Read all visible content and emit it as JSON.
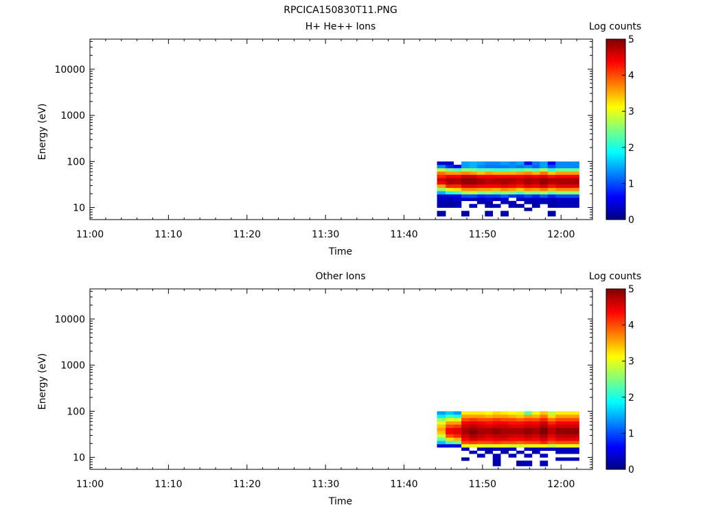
{
  "figure_title": "RPCICA150830T11.PNG",
  "colors": {
    "colormap": [
      "#00007f",
      "#0000ff",
      "#007fff",
      "#00ffff",
      "#7fff7f",
      "#ffff00",
      "#ff7f00",
      "#ff0000",
      "#7f0000"
    ],
    "axes": "#000000",
    "background": "#ffffff"
  },
  "chart_data": [
    {
      "type": "heatmap",
      "title": "H+ He++ Ions",
      "xlabel": "Time",
      "ylabel": "Energy (eV)",
      "x_ticks": [
        "11:00",
        "11:10",
        "11:20",
        "11:30",
        "11:40",
        "11:50",
        "12:00"
      ],
      "x_range_minutes": [
        0,
        64
      ],
      "y_scale": "log",
      "y_ticks": [
        "10",
        "100",
        "1000",
        "10000"
      ],
      "y_range": [
        5.5,
        45000
      ],
      "colorbar_label": "Log counts",
      "colorbar_ticks": [
        "0",
        "1",
        "2",
        "3",
        "4",
        "5"
      ],
      "colorbar_range": [
        0,
        5
      ],
      "energy_bins": [
        6.5,
        8.5,
        10,
        12,
        14,
        16.5,
        19.5,
        23,
        27,
        32,
        37.5,
        44,
        52,
        61,
        72,
        85,
        100
      ],
      "time_columns": [
        {
          "t0": 44.2,
          "t1": 45.3,
          "values": [
            0.2,
            null,
            0.2,
            0.3,
            0.3,
            0.4,
            1.5,
            2.6,
            3.6,
            4.4,
            4.6,
            4.2,
            3.8,
            2.8,
            1.3,
            0.4
          ]
        },
        {
          "t0": 45.3,
          "t1": 46.3,
          "values": [
            null,
            null,
            0.2,
            0.2,
            0.3,
            0.4,
            2.0,
            3.2,
            4.2,
            4.8,
            4.8,
            4.4,
            3.6,
            2.5,
            0.8,
            0.3
          ]
        },
        {
          "t0": 46.3,
          "t1": 47.3,
          "values": [
            null,
            null,
            0.3,
            0.2,
            0.4,
            0.5,
            2.2,
            3.3,
            4.2,
            4.7,
            4.8,
            4.4,
            3.6,
            2.3,
            0.6,
            null
          ]
        },
        {
          "t0": 47.3,
          "t1": 48.3,
          "values": [
            0.2,
            null,
            null,
            null,
            0.3,
            1.0,
            2.7,
            3.7,
            4.5,
            4.9,
            4.9,
            4.6,
            3.7,
            2.6,
            1.4,
            1.4
          ]
        },
        {
          "t0": 48.3,
          "t1": 49.3,
          "values": [
            null,
            null,
            0.3,
            null,
            0.3,
            1.0,
            2.8,
            3.7,
            4.5,
            4.9,
            4.9,
            4.6,
            3.6,
            2.5,
            1.5,
            1.5
          ]
        },
        {
          "t0": 49.3,
          "t1": 50.3,
          "values": [
            null,
            null,
            null,
            0.2,
            0.3,
            0.8,
            2.5,
            3.6,
            4.4,
            4.8,
            4.8,
            4.4,
            3.4,
            2.3,
            1.3,
            1.4
          ]
        },
        {
          "t0": 50.3,
          "t1": 51.3,
          "values": [
            0.2,
            null,
            0.2,
            0.2,
            0.4,
            0.9,
            2.6,
            3.6,
            4.4,
            4.7,
            4.7,
            4.4,
            3.6,
            2.3,
            1.2,
            1.3
          ]
        },
        {
          "t0": 51.3,
          "t1": 52.3,
          "values": [
            null,
            null,
            0.3,
            null,
            0.3,
            0.9,
            2.4,
            3.5,
            4.4,
            4.7,
            4.8,
            4.4,
            3.5,
            2.2,
            1.2,
            1.3
          ]
        },
        {
          "t0": 52.3,
          "t1": 53.3,
          "values": [
            0.2,
            null,
            null,
            0.3,
            0.4,
            1.1,
            2.6,
            3.7,
            4.5,
            4.8,
            4.8,
            4.4,
            3.5,
            2.2,
            1.2,
            1.4
          ]
        },
        {
          "t0": 53.3,
          "t1": 54.3,
          "values": [
            null,
            null,
            0.3,
            0.2,
            null,
            0.9,
            2.5,
            3.6,
            4.4,
            4.7,
            4.8,
            4.4,
            3.5,
            2.3,
            1.3,
            1.3
          ]
        },
        {
          "t0": 54.3,
          "t1": 55.3,
          "values": [
            null,
            null,
            0.2,
            null,
            0.3,
            0.8,
            2.3,
            3.4,
            4.3,
            4.6,
            4.7,
            4.4,
            3.6,
            2.3,
            1.2,
            1.4
          ]
        },
        {
          "t0": 55.3,
          "t1": 56.3,
          "values": [
            null,
            0.2,
            null,
            0.3,
            0.3,
            1.0,
            2.6,
            3.7,
            4.5,
            4.8,
            4.8,
            4.5,
            3.7,
            2.5,
            1.3,
            0.6
          ]
        },
        {
          "t0": 56.3,
          "t1": 57.3,
          "values": [
            null,
            null,
            0.2,
            0.2,
            0.3,
            0.8,
            2.5,
            3.6,
            4.4,
            4.7,
            4.8,
            4.4,
            3.5,
            2.3,
            1.1,
            1.2
          ]
        },
        {
          "t0": 57.3,
          "t1": 58.3,
          "values": [
            null,
            null,
            null,
            0.3,
            0.3,
            1.1,
            2.7,
            3.8,
            4.6,
            4.9,
            4.9,
            4.5,
            3.8,
            2.7,
            1.4,
            1.4
          ]
        },
        {
          "t0": 58.3,
          "t1": 59.3,
          "values": [
            0.2,
            null,
            0.2,
            0.2,
            0.3,
            0.8,
            2.4,
            3.5,
            4.3,
            4.7,
            4.8,
            4.3,
            3.4,
            2.1,
            1.0,
            0.6
          ]
        },
        {
          "t0": 59.3,
          "t1": 60.3,
          "values": [
            null,
            null,
            0.3,
            0.3,
            0.3,
            1.0,
            2.6,
            3.7,
            4.5,
            4.8,
            4.8,
            4.4,
            3.6,
            2.4,
            1.3,
            1.3
          ]
        },
        {
          "t0": 60.3,
          "t1": 61.3,
          "values": [
            null,
            null,
            0.3,
            0.3,
            0.3,
            1.0,
            2.6,
            3.7,
            4.5,
            4.8,
            4.8,
            4.4,
            3.6,
            2.4,
            1.3,
            1.3
          ]
        },
        {
          "t0": 61.3,
          "t1": 62.3,
          "values": [
            null,
            null,
            0.3,
            0.3,
            0.3,
            1.0,
            2.6,
            3.7,
            4.5,
            4.8,
            4.8,
            4.4,
            3.6,
            2.4,
            1.3,
            1.3
          ]
        }
      ]
    },
    {
      "type": "heatmap",
      "title": "Other Ions",
      "xlabel": "Time",
      "ylabel": "Energy (eV)",
      "x_ticks": [
        "11:00",
        "11:10",
        "11:20",
        "11:30",
        "11:40",
        "11:50",
        "12:00"
      ],
      "x_range_minutes": [
        0,
        64
      ],
      "y_scale": "log",
      "y_ticks": [
        "10",
        "100",
        "1000",
        "10000"
      ],
      "y_range": [
        5.5,
        45000
      ],
      "colorbar_label": "Log counts",
      "colorbar_ticks": [
        "0",
        "1",
        "2",
        "3",
        "4",
        "5"
      ],
      "colorbar_range": [
        0,
        5
      ],
      "energy_bins": [
        6.5,
        8.5,
        10,
        12,
        14,
        16.5,
        19.5,
        23,
        27,
        32,
        37.5,
        44,
        52,
        61,
        72,
        85,
        100
      ],
      "time_columns": [
        {
          "t0": 44.2,
          "t1": 45.3,
          "values": [
            null,
            null,
            null,
            null,
            null,
            0.4,
            1.6,
            2.4,
            2.9,
            3.4,
            3.6,
            3.4,
            3.0,
            2.6,
            1.8,
            1.4
          ]
        },
        {
          "t0": 45.3,
          "t1": 46.3,
          "values": [
            null,
            null,
            null,
            null,
            null,
            0.5,
            2.2,
            3.3,
            4.0,
            4.4,
            4.4,
            4.0,
            3.6,
            3.0,
            2.2,
            1.6
          ]
        },
        {
          "t0": 46.3,
          "t1": 47.3,
          "values": [
            null,
            null,
            null,
            null,
            null,
            0.5,
            2.4,
            3.5,
            4.2,
            4.5,
            4.5,
            4.1,
            3.6,
            3.0,
            2.0,
            1.4
          ]
        },
        {
          "t0": 47.3,
          "t1": 48.3,
          "values": [
            null,
            0.2,
            null,
            null,
            0.3,
            3.0,
            4.0,
            4.4,
            4.6,
            4.8,
            4.8,
            4.6,
            4.4,
            4.0,
            3.6,
            3.2
          ]
        },
        {
          "t0": 48.3,
          "t1": 49.3,
          "values": [
            null,
            null,
            null,
            0.3,
            null,
            3.0,
            4.1,
            4.6,
            4.8,
            5.0,
            4.9,
            4.7,
            4.5,
            4.1,
            3.6,
            3.2
          ]
        },
        {
          "t0": 49.3,
          "t1": 50.3,
          "values": [
            null,
            null,
            0.3,
            null,
            0.3,
            3.0,
            4.0,
            4.5,
            4.7,
            4.8,
            4.8,
            4.6,
            4.4,
            4.0,
            3.6,
            3.2
          ]
        },
        {
          "t0": 50.3,
          "t1": 51.3,
          "values": [
            null,
            null,
            null,
            0.2,
            0.2,
            2.9,
            4.0,
            4.4,
            4.6,
            4.8,
            4.8,
            4.5,
            4.3,
            4.0,
            3.5,
            3.1
          ]
        },
        {
          "t0": 51.3,
          "t1": 52.3,
          "values": [
            0.2,
            0.3,
            0.3,
            null,
            0.3,
            3.0,
            4.1,
            4.5,
            4.7,
            4.9,
            4.9,
            4.6,
            4.4,
            4.1,
            3.6,
            3.3
          ]
        },
        {
          "t0": 52.3,
          "t1": 53.3,
          "values": [
            null,
            null,
            null,
            0.2,
            0.3,
            3.0,
            4.0,
            4.5,
            4.7,
            4.8,
            4.8,
            4.6,
            4.4,
            4.0,
            3.6,
            3.2
          ]
        },
        {
          "t0": 53.3,
          "t1": 54.3,
          "values": [
            null,
            null,
            0.3,
            null,
            0.3,
            2.9,
            4.0,
            4.4,
            4.6,
            4.8,
            4.8,
            4.5,
            4.3,
            4.0,
            3.5,
            3.1
          ]
        },
        {
          "t0": 54.3,
          "t1": 55.3,
          "values": [
            0.2,
            null,
            null,
            0.3,
            null,
            2.9,
            3.9,
            4.4,
            4.6,
            4.8,
            4.8,
            4.5,
            4.3,
            3.9,
            3.4,
            3.0
          ]
        },
        {
          "t0": 55.3,
          "t1": 56.3,
          "values": [
            0.3,
            null,
            0.3,
            null,
            0.3,
            3.0,
            4.0,
            4.5,
            4.7,
            4.9,
            4.9,
            4.6,
            4.4,
            4.0,
            3.6,
            2.3
          ]
        },
        {
          "t0": 56.3,
          "t1": 57.3,
          "values": [
            null,
            null,
            null,
            0.2,
            0.3,
            3.0,
            4.0,
            4.4,
            4.6,
            4.8,
            4.8,
            4.6,
            4.4,
            4.0,
            3.5,
            3.1
          ]
        },
        {
          "t0": 57.3,
          "t1": 58.3,
          "values": [
            0.3,
            null,
            0.3,
            null,
            0.3,
            3.1,
            4.2,
            4.6,
            4.8,
            5.0,
            5.0,
            4.8,
            4.6,
            4.2,
            3.8,
            3.4
          ]
        },
        {
          "t0": 58.3,
          "t1": 59.3,
          "values": [
            null,
            null,
            null,
            null,
            0.3,
            2.8,
            3.9,
            4.3,
            4.5,
            4.7,
            4.7,
            4.5,
            4.2,
            3.8,
            3.3,
            2.8
          ]
        },
        {
          "t0": 59.3,
          "t1": 60.3,
          "values": [
            null,
            0.3,
            null,
            0.3,
            0.3,
            3.0,
            4.0,
            4.5,
            4.7,
            4.9,
            4.9,
            4.6,
            4.4,
            4.0,
            3.6,
            3.2
          ]
        },
        {
          "t0": 60.3,
          "t1": 61.3,
          "values": [
            null,
            0.3,
            null,
            0.3,
            0.3,
            3.0,
            4.0,
            4.5,
            4.7,
            4.9,
            4.9,
            4.6,
            4.4,
            4.0,
            3.6,
            3.2
          ]
        },
        {
          "t0": 61.3,
          "t1": 62.3,
          "values": [
            null,
            0.3,
            null,
            0.3,
            0.3,
            3.0,
            4.0,
            4.5,
            4.7,
            4.9,
            4.9,
            4.6,
            4.4,
            4.0,
            3.6,
            3.2
          ]
        }
      ]
    }
  ]
}
